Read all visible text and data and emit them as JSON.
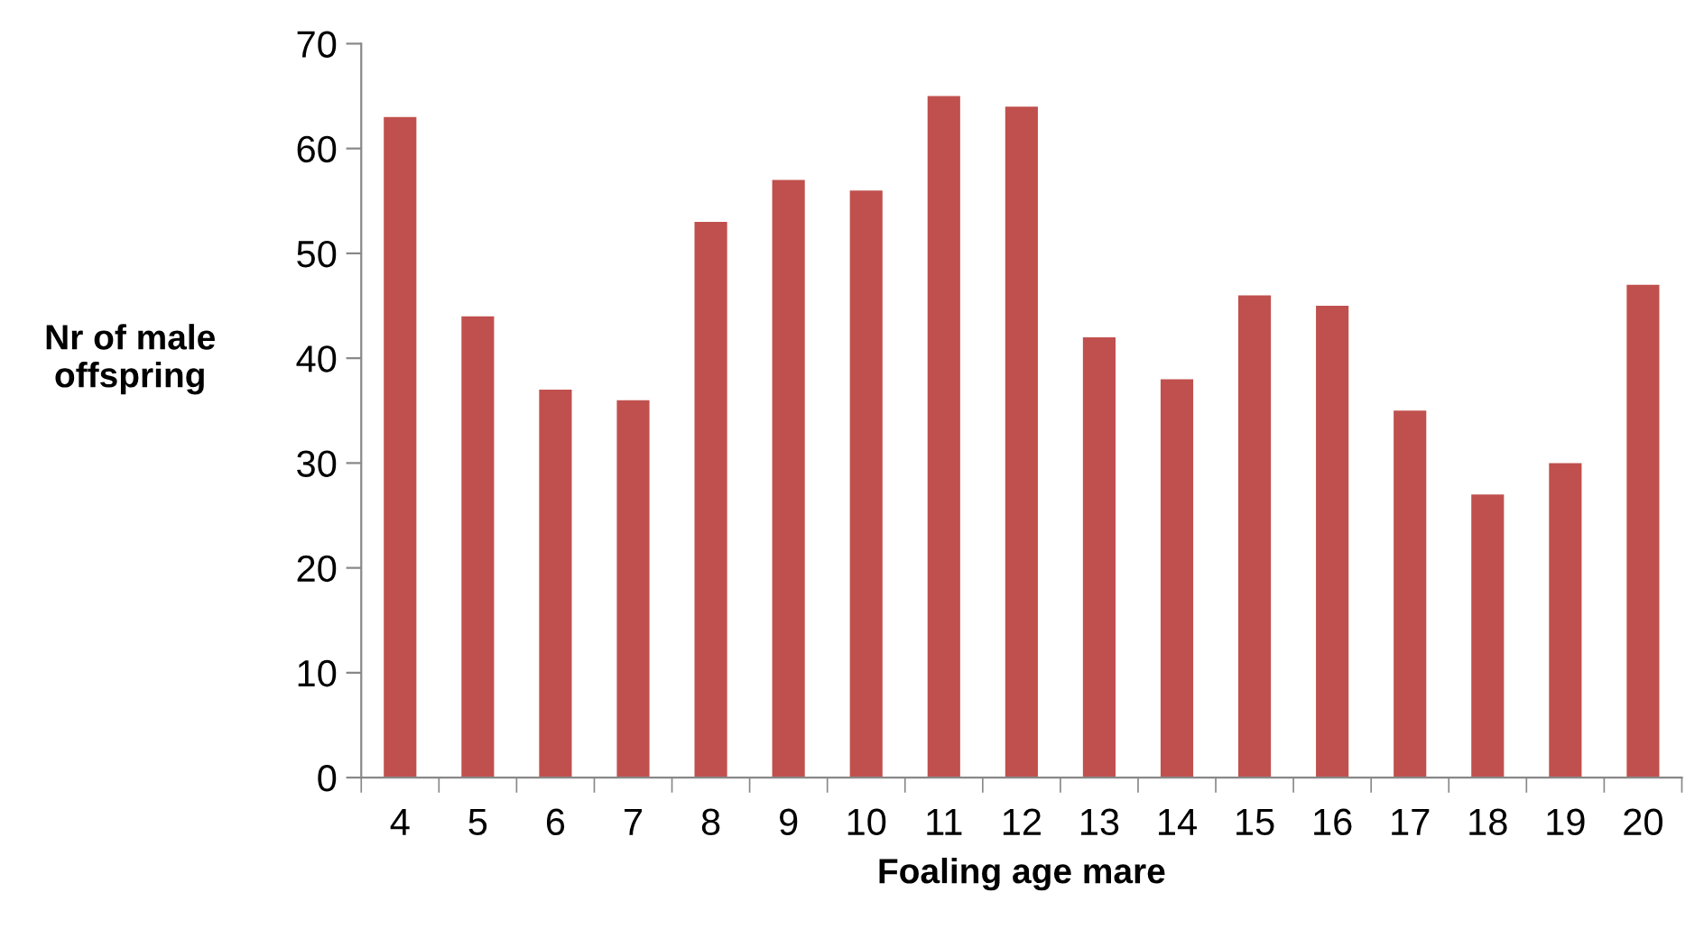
{
  "chart_data": {
    "type": "bar",
    "categories": [
      "4",
      "5",
      "6",
      "7",
      "8",
      "9",
      "10",
      "11",
      "12",
      "13",
      "14",
      "15",
      "16",
      "17",
      "18",
      "19",
      "20"
    ],
    "values": [
      63,
      44,
      37,
      36,
      53,
      57,
      56,
      65,
      64,
      42,
      38,
      46,
      45,
      35,
      27,
      30,
      47
    ],
    "color": "#c0504d",
    "xlabel": "Foaling age mare",
    "ylabel": "Nr of male\noffspring",
    "ylim": [
      0,
      70
    ],
    "yticks": [
      0,
      10,
      20,
      30,
      40,
      50,
      60,
      70
    ],
    "grid": false,
    "legend": false
  }
}
